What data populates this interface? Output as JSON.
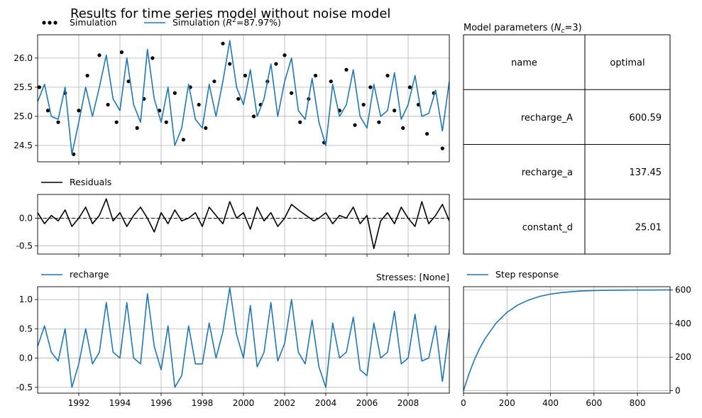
{
  "figure": {
    "title": "Results for time series model without noise model"
  },
  "colors": {
    "series": "#1f77b4",
    "observed": "#000000",
    "grid": "#b0b0b0",
    "frame": "#000000"
  },
  "chart_data": [
    {
      "panel": "simulation",
      "type": "line",
      "title": "",
      "xlabel": "",
      "ylabel": "",
      "x_range": [
        "1990-01-01",
        "2010-01-01"
      ],
      "ylim": [
        24.22,
        26.4
      ],
      "yticks": [
        "24.5",
        "25.0",
        "25.5",
        "26.0"
      ],
      "grid": true,
      "legend_position": "above-left",
      "legend": [
        "Simulation",
        "Simulation (R²=87.97%)"
      ],
      "series": [
        {
          "name": "Simulation",
          "style": "dots",
          "note_x": "dates",
          "x": [
            "1990-02",
            "1990-07",
            "1991-01",
            "1991-05",
            "1991-10",
            "1992-01",
            "1992-06",
            "1993-01",
            "1993-06",
            "1993-11",
            "1994-02",
            "1994-06",
            "1994-11",
            "1995-03",
            "1995-08",
            "1995-12",
            "1996-04",
            "1996-09",
            "1997-02",
            "1997-06",
            "1997-11",
            "1998-03",
            "1998-08",
            "1999-01",
            "1999-05",
            "1999-10",
            "2000-02",
            "2000-07",
            "2000-11",
            "2001-03",
            "2001-08",
            "2002-01",
            "2002-05",
            "2002-10",
            "2003-03",
            "2003-07",
            "2003-12",
            "2004-04",
            "2004-09",
            "2005-01",
            "2005-06",
            "2005-11",
            "2006-03",
            "2006-08",
            "2007-01",
            "2007-05",
            "2007-10",
            "2008-02",
            "2008-07",
            "2008-12",
            "2009-04",
            "2009-09"
          ],
          "values": [
            25.5,
            25.1,
            24.9,
            25.4,
            24.35,
            25.1,
            25.7,
            26.05,
            25.2,
            24.9,
            26.1,
            25.6,
            24.8,
            25.3,
            26.0,
            25.1,
            24.9,
            25.4,
            24.6,
            25.5,
            25.2,
            24.8,
            25.6,
            26.25,
            25.9,
            25.3,
            25.7,
            25.0,
            25.2,
            25.6,
            25.9,
            26.05,
            25.4,
            24.9,
            25.3,
            25.7,
            24.55,
            25.6,
            25.1,
            25.8,
            24.85,
            25.2,
            25.5,
            24.9,
            25.7,
            25.1,
            24.8,
            25.5,
            25.2,
            24.7,
            25.4,
            24.45
          ]
        },
        {
          "name": "Simulation (R²=87.97%)",
          "style": "line",
          "x": [
            "1990-01",
            "1990-05",
            "1990-09",
            "1991-01",
            "1991-05",
            "1991-09",
            "1992-01",
            "1992-05",
            "1992-09",
            "1993-01",
            "1993-05",
            "1993-09",
            "1994-01",
            "1994-05",
            "1994-09",
            "1995-01",
            "1995-05",
            "1995-09",
            "1996-01",
            "1996-05",
            "1996-09",
            "1997-01",
            "1997-05",
            "1997-09",
            "1998-01",
            "1998-05",
            "1998-09",
            "1999-01",
            "1999-05",
            "1999-09",
            "2000-01",
            "2000-05",
            "2000-09",
            "2001-01",
            "2001-05",
            "2001-09",
            "2002-01",
            "2002-05",
            "2002-09",
            "2003-01",
            "2003-05",
            "2003-09",
            "2004-01",
            "2004-05",
            "2004-09",
            "2005-01",
            "2005-05",
            "2005-09",
            "2006-01",
            "2006-05",
            "2006-09",
            "2007-01",
            "2007-05",
            "2007-09",
            "2008-01",
            "2008-05",
            "2008-09",
            "2009-01",
            "2009-05",
            "2009-09",
            "2010-01"
          ],
          "values": [
            25.25,
            25.55,
            25.0,
            24.95,
            25.5,
            24.35,
            24.9,
            25.5,
            25.0,
            25.5,
            26.05,
            25.3,
            25.1,
            26.0,
            25.2,
            24.9,
            26.15,
            25.3,
            24.9,
            25.5,
            24.5,
            24.8,
            25.55,
            24.95,
            24.8,
            25.55,
            25.0,
            25.6,
            26.3,
            25.5,
            25.2,
            25.8,
            25.0,
            25.3,
            25.9,
            25.0,
            25.6,
            26.0,
            25.1,
            24.95,
            25.65,
            24.9,
            24.5,
            25.55,
            25.0,
            25.2,
            25.8,
            25.0,
            24.8,
            25.55,
            25.0,
            25.1,
            25.75,
            24.95,
            25.2,
            25.7,
            25.0,
            25.05,
            25.45,
            24.75,
            25.6
          ]
        }
      ]
    },
    {
      "panel": "residuals",
      "type": "line",
      "title": "",
      "xlabel": "",
      "ylabel": "",
      "x_range": [
        "1990-01-01",
        "2010-01-01"
      ],
      "ylim": [
        -0.65,
        0.43
      ],
      "yticks": [
        "-0.5",
        "0.0"
      ],
      "grid": true,
      "zero_line": "dashed",
      "legend": [
        "Residuals"
      ],
      "series": [
        {
          "name": "Residuals",
          "x": [
            "1990-01",
            "1990-05",
            "1990-09",
            "1991-01",
            "1991-05",
            "1991-09",
            "1992-01",
            "1992-05",
            "1992-09",
            "1993-01",
            "1993-05",
            "1993-09",
            "1994-01",
            "1994-05",
            "1994-09",
            "1995-01",
            "1995-05",
            "1995-09",
            "1996-01",
            "1996-05",
            "1996-09",
            "1997-01",
            "1997-05",
            "1997-09",
            "1998-01",
            "1998-05",
            "1998-09",
            "1999-01",
            "1999-05",
            "1999-09",
            "2000-01",
            "2000-05",
            "2000-09",
            "2001-01",
            "2001-05",
            "2001-09",
            "2002-01",
            "2002-05",
            "2002-09",
            "2003-06",
            "2003-09",
            "2004-01",
            "2004-05",
            "2004-09",
            "2005-01",
            "2005-05",
            "2005-09",
            "2006-01",
            "2006-05",
            "2006-09",
            "2007-01",
            "2007-05",
            "2007-09",
            "2008-01",
            "2008-05",
            "2008-09",
            "2009-01",
            "2009-05",
            "2009-09",
            "2010-01"
          ],
          "values": [
            0.1,
            -0.1,
            0.05,
            -0.05,
            0.15,
            -0.15,
            0.0,
            0.2,
            -0.1,
            0.05,
            0.35,
            -0.05,
            0.1,
            -0.15,
            0.05,
            0.2,
            0.0,
            -0.25,
            0.1,
            -0.1,
            0.15,
            -0.05,
            0.0,
            0.1,
            -0.15,
            0.2,
            0.05,
            -0.1,
            0.3,
            0.0,
            0.1,
            -0.2,
            0.2,
            -0.05,
            0.1,
            -0.15,
            0.0,
            0.25,
            0.15,
            -0.05,
            0.0,
            0.1,
            -0.1,
            0.05,
            0.0,
            0.2,
            -0.1,
            0.05,
            -0.55,
            -0.05,
            0.1,
            -0.1,
            0.2,
            0.0,
            -0.15,
            0.3,
            -0.1,
            0.05,
            0.25,
            -0.05
          ]
        }
      ]
    },
    {
      "panel": "recharge",
      "type": "line",
      "title": "",
      "xlabel": "",
      "ylabel": "",
      "annotation": "Stresses: [None]",
      "x_range": [
        "1990-01-01",
        "2010-01-01"
      ],
      "ylim": [
        -0.6,
        1.22
      ],
      "yticks": [
        "-0.5",
        "0.0",
        "0.5",
        "1.0"
      ],
      "xticks": [
        "1992",
        "1994",
        "1996",
        "1998",
        "2000",
        "2002",
        "2004",
        "2006",
        "2008"
      ],
      "grid": true,
      "legend": [
        "recharge"
      ],
      "series": [
        {
          "name": "recharge",
          "x": [
            "1990-01",
            "1990-05",
            "1990-09",
            "1991-01",
            "1991-05",
            "1991-09",
            "1992-01",
            "1992-05",
            "1992-09",
            "1993-01",
            "1993-05",
            "1993-09",
            "1994-01",
            "1994-05",
            "1994-09",
            "1995-01",
            "1995-05",
            "1995-09",
            "1996-01",
            "1996-05",
            "1996-09",
            "1997-01",
            "1997-05",
            "1997-09",
            "1998-01",
            "1998-05",
            "1998-09",
            "1999-01",
            "1999-05",
            "1999-09",
            "2000-01",
            "2000-05",
            "2000-09",
            "2001-01",
            "2001-05",
            "2001-09",
            "2002-01",
            "2002-05",
            "2002-09",
            "2003-01",
            "2003-05",
            "2003-09",
            "2004-01",
            "2004-05",
            "2004-09",
            "2005-01",
            "2005-05",
            "2005-09",
            "2006-01",
            "2006-05",
            "2006-09",
            "2007-01",
            "2007-05",
            "2007-09",
            "2008-01",
            "2008-05",
            "2008-09",
            "2009-01",
            "2009-05",
            "2009-09",
            "2010-01"
          ],
          "values": [
            0.2,
            0.55,
            0.1,
            -0.05,
            0.5,
            -0.5,
            -0.1,
            0.5,
            -0.1,
            0.1,
            0.95,
            0.1,
            0.0,
            0.95,
            0.0,
            -0.1,
            1.1,
            0.2,
            -0.2,
            0.55,
            -0.5,
            -0.3,
            0.55,
            -0.1,
            -0.1,
            0.6,
            0.0,
            0.45,
            1.2,
            0.4,
            0.0,
            0.9,
            -0.15,
            0.1,
            0.95,
            -0.05,
            0.25,
            1.0,
            0.1,
            -0.1,
            0.65,
            -0.15,
            -0.5,
            0.6,
            0.0,
            0.1,
            0.7,
            -0.2,
            -0.3,
            0.6,
            0.0,
            0.1,
            0.8,
            -0.1,
            0.0,
            0.75,
            -0.05,
            0.0,
            0.55,
            -0.4,
            0.5
          ]
        }
      ]
    },
    {
      "panel": "step_response",
      "type": "line",
      "title": "",
      "xlabel": "",
      "ylabel": "",
      "xlim": [
        0,
        950
      ],
      "ylim": [
        -15,
        620
      ],
      "xticks": [
        "0",
        "200",
        "400",
        "600",
        "800"
      ],
      "yticks": [
        "0",
        "200",
        "400",
        "600"
      ],
      "y_axis_side": "right",
      "grid": true,
      "legend": [
        "Step response"
      ],
      "series": [
        {
          "name": "Step response",
          "x": [
            0,
            25,
            50,
            75,
            100,
            150,
            200,
            250,
            300,
            350,
            400,
            450,
            500,
            550,
            600,
            650,
            700,
            750,
            800,
            850,
            900,
            950
          ],
          "values": [
            0,
            100,
            184,
            254,
            312,
            403,
            467,
            511,
            541,
            562,
            576,
            585,
            591,
            595,
            597,
            598.5,
            599.3,
            599.8,
            600.1,
            600.3,
            600.5,
            600.59
          ]
        }
      ]
    }
  ],
  "params_table": {
    "title": "Model parameters (N_c=3)",
    "title_pre": "Model parameters (",
    "title_var": "N",
    "title_sub": "c",
    "title_post": "=3)",
    "headers": [
      "name",
      "optimal"
    ],
    "rows": [
      [
        "recharge_A",
        "600.59"
      ],
      [
        "recharge_a",
        "137.45"
      ],
      [
        "constant_d",
        "25.01"
      ]
    ]
  }
}
